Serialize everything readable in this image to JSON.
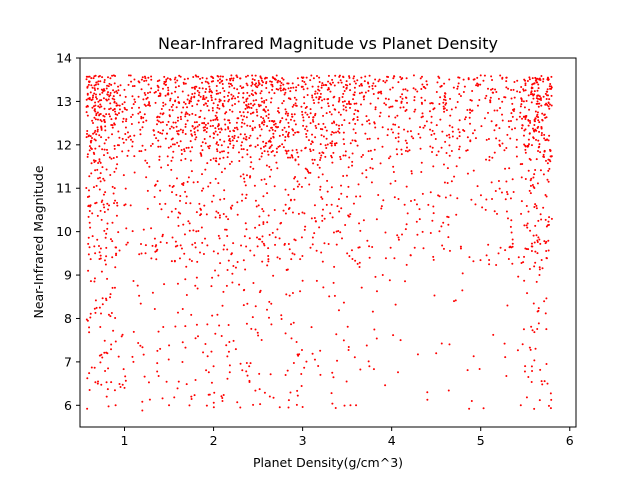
{
  "chart_data": {
    "type": "scatter",
    "title": "Near-Infrared Magnitude vs Planet Density",
    "xlabel": "Planet Density(g/cm^3)",
    "ylabel": "Near-Infrared Magnitude",
    "xlim": [
      0.5,
      6.07
    ],
    "ylim": [
      5.5,
      14
    ],
    "xticks": [
      1,
      2,
      3,
      4,
      5,
      6
    ],
    "yticks": [
      6,
      7,
      8,
      9,
      10,
      11,
      12,
      13,
      14
    ],
    "grid": false,
    "legend": "none",
    "marker_color": "#ff0000",
    "point_count": 2800,
    "distribution_notes": {
      "x_range": [
        0.57,
        5.8
      ],
      "y_range": [
        5.9,
        13.6
      ],
      "dense_band": [
        11.5,
        13.6
      ],
      "density_peak_x": 2.3
    },
    "sample_points": [
      [
        0.58,
        5.92
      ],
      [
        0.6,
        10.6
      ],
      [
        0.62,
        12.2
      ],
      [
        0.7,
        6.5
      ],
      [
        0.75,
        7.1
      ],
      [
        0.8,
        6.2
      ],
      [
        0.85,
        7.4
      ],
      [
        0.9,
        6.0
      ],
      [
        1.0,
        6.4
      ],
      [
        1.05,
        13.6
      ],
      [
        1.1,
        7.0
      ],
      [
        1.2,
        5.88
      ],
      [
        1.3,
        13.5
      ],
      [
        1.4,
        7.3
      ],
      [
        1.5,
        6.0
      ],
      [
        1.6,
        8.8
      ],
      [
        1.75,
        6.2
      ],
      [
        1.8,
        13.6
      ],
      [
        2.0,
        6.9
      ],
      [
        2.1,
        6.1
      ],
      [
        2.2,
        13.6
      ],
      [
        2.3,
        5.95
      ],
      [
        2.4,
        6.9
      ],
      [
        2.6,
        8.2
      ],
      [
        2.7,
        13.5
      ],
      [
        2.9,
        7.9
      ],
      [
        3.0,
        5.96
      ],
      [
        3.1,
        7.8
      ],
      [
        3.2,
        6.7
      ],
      [
        3.5,
        9.5
      ],
      [
        3.6,
        6.0
      ],
      [
        3.75,
        6.9
      ],
      [
        3.9,
        9.0
      ],
      [
        4.1,
        7.5
      ],
      [
        4.25,
        13.6
      ],
      [
        4.4,
        6.3
      ],
      [
        4.5,
        7.2
      ],
      [
        4.7,
        8.4
      ],
      [
        4.9,
        6.1
      ],
      [
        5.0,
        13.6
      ],
      [
        5.2,
        9.5
      ],
      [
        5.3,
        8.3
      ],
      [
        5.45,
        6.0
      ],
      [
        5.6,
        9.2
      ],
      [
        5.75,
        6.5
      ],
      [
        5.78,
        13.4
      ]
    ]
  }
}
